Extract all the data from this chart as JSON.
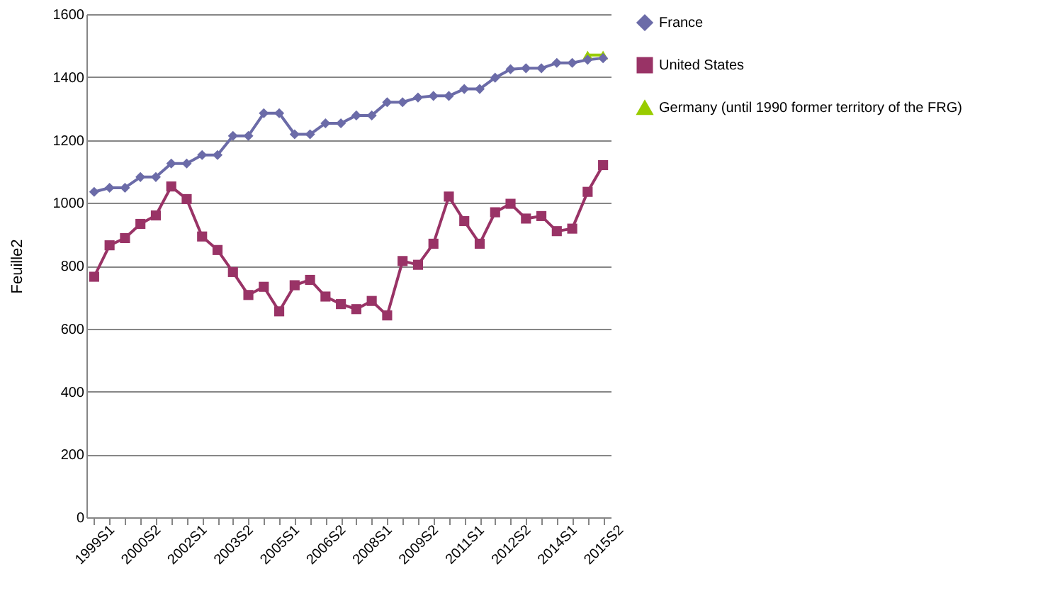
{
  "chart_data": {
    "type": "line",
    "ylabel": "Feuille2",
    "categories": [
      "1999S1",
      null,
      null,
      "2000S2",
      null,
      null,
      "2002S1",
      null,
      null,
      "2003S2",
      null,
      null,
      "2005S1",
      null,
      null,
      "2006S2",
      null,
      null,
      "2008S1",
      null,
      null,
      "2009S2",
      null,
      null,
      "2011S1",
      null,
      null,
      "2012S2",
      null,
      null,
      "2014S1",
      null,
      null,
      "2015S2"
    ],
    "series": [
      {
        "name": "France",
        "color": "#6b6ba8",
        "marker": "diamond",
        "values": [
          1035,
          1048,
          1048,
          1082,
          1082,
          1125,
          1125,
          1152,
          1152,
          1213,
          1213,
          1285,
          1285,
          1218,
          1218,
          1253,
          1253,
          1278,
          1278,
          1320,
          1320,
          1335,
          1340,
          1340,
          1362,
          1362,
          1398,
          1425,
          1428,
          1428,
          1445,
          1445,
          1455,
          1460
        ]
      },
      {
        "name": "United States",
        "color": "#993366",
        "marker": "square",
        "values": [
          765,
          865,
          888,
          933,
          960,
          1052,
          1012,
          893,
          850,
          780,
          707,
          733,
          655,
          738,
          755,
          702,
          678,
          662,
          688,
          642,
          815,
          803,
          870,
          1020,
          942,
          870,
          970,
          997,
          950,
          958,
          910,
          918,
          1035,
          1120
        ]
      },
      {
        "name": "Germany (until 1990 former territory of the FRG)",
        "color": "#99cc00",
        "marker": "triangle",
        "values": [
          null,
          null,
          null,
          null,
          null,
          null,
          null,
          null,
          null,
          null,
          null,
          null,
          null,
          null,
          null,
          null,
          null,
          null,
          null,
          null,
          null,
          null,
          null,
          null,
          null,
          null,
          null,
          null,
          null,
          null,
          null,
          null,
          1470,
          1470
        ]
      }
    ],
    "ylim": [
      0,
      1600
    ],
    "yticks": [
      0,
      200,
      400,
      600,
      800,
      1000,
      1200,
      1400,
      1600
    ],
    "grid": "y",
    "legend": "right",
    "line_style": "solid"
  }
}
